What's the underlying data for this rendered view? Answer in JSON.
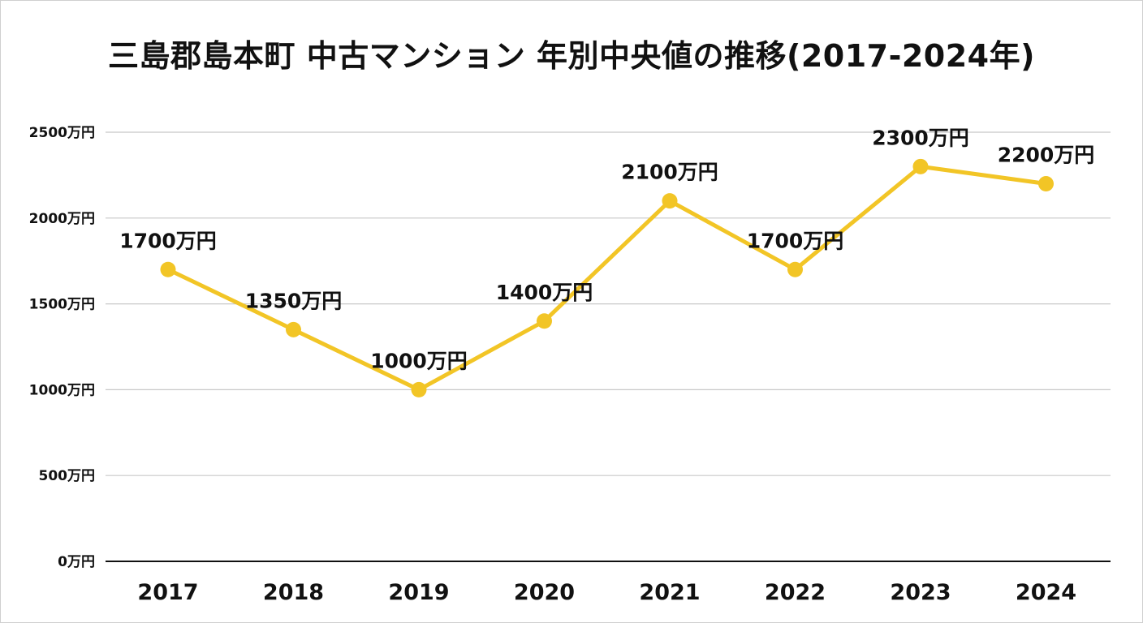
{
  "chart_data": {
    "type": "line",
    "title": "三島郡島本町 中古マンション 年別中央値の推移(2017-2024年)",
    "categories": [
      "2017",
      "2018",
      "2019",
      "2020",
      "2021",
      "2022",
      "2023",
      "2024"
    ],
    "series": [
      {
        "values": [
          1700,
          1350,
          1000,
          1400,
          2100,
          1700,
          2300,
          2200
        ],
        "labels": [
          "1700万円",
          "1350万円",
          "1000万円",
          "1400万円",
          "2100万円",
          "1700万円",
          "2300万円",
          "2200万円"
        ],
        "color": "#F2C526"
      }
    ],
    "yticks": [
      0,
      500,
      1000,
      1500,
      2000,
      2500
    ],
    "ytick_labels": [
      "0万円",
      "500万円",
      "1000万円",
      "1500万円",
      "2000万円",
      "2500万円"
    ],
    "ylim": [
      0,
      2500
    ],
    "grid": true,
    "legend": "none",
    "xlabel": "",
    "ylabel": ""
  }
}
